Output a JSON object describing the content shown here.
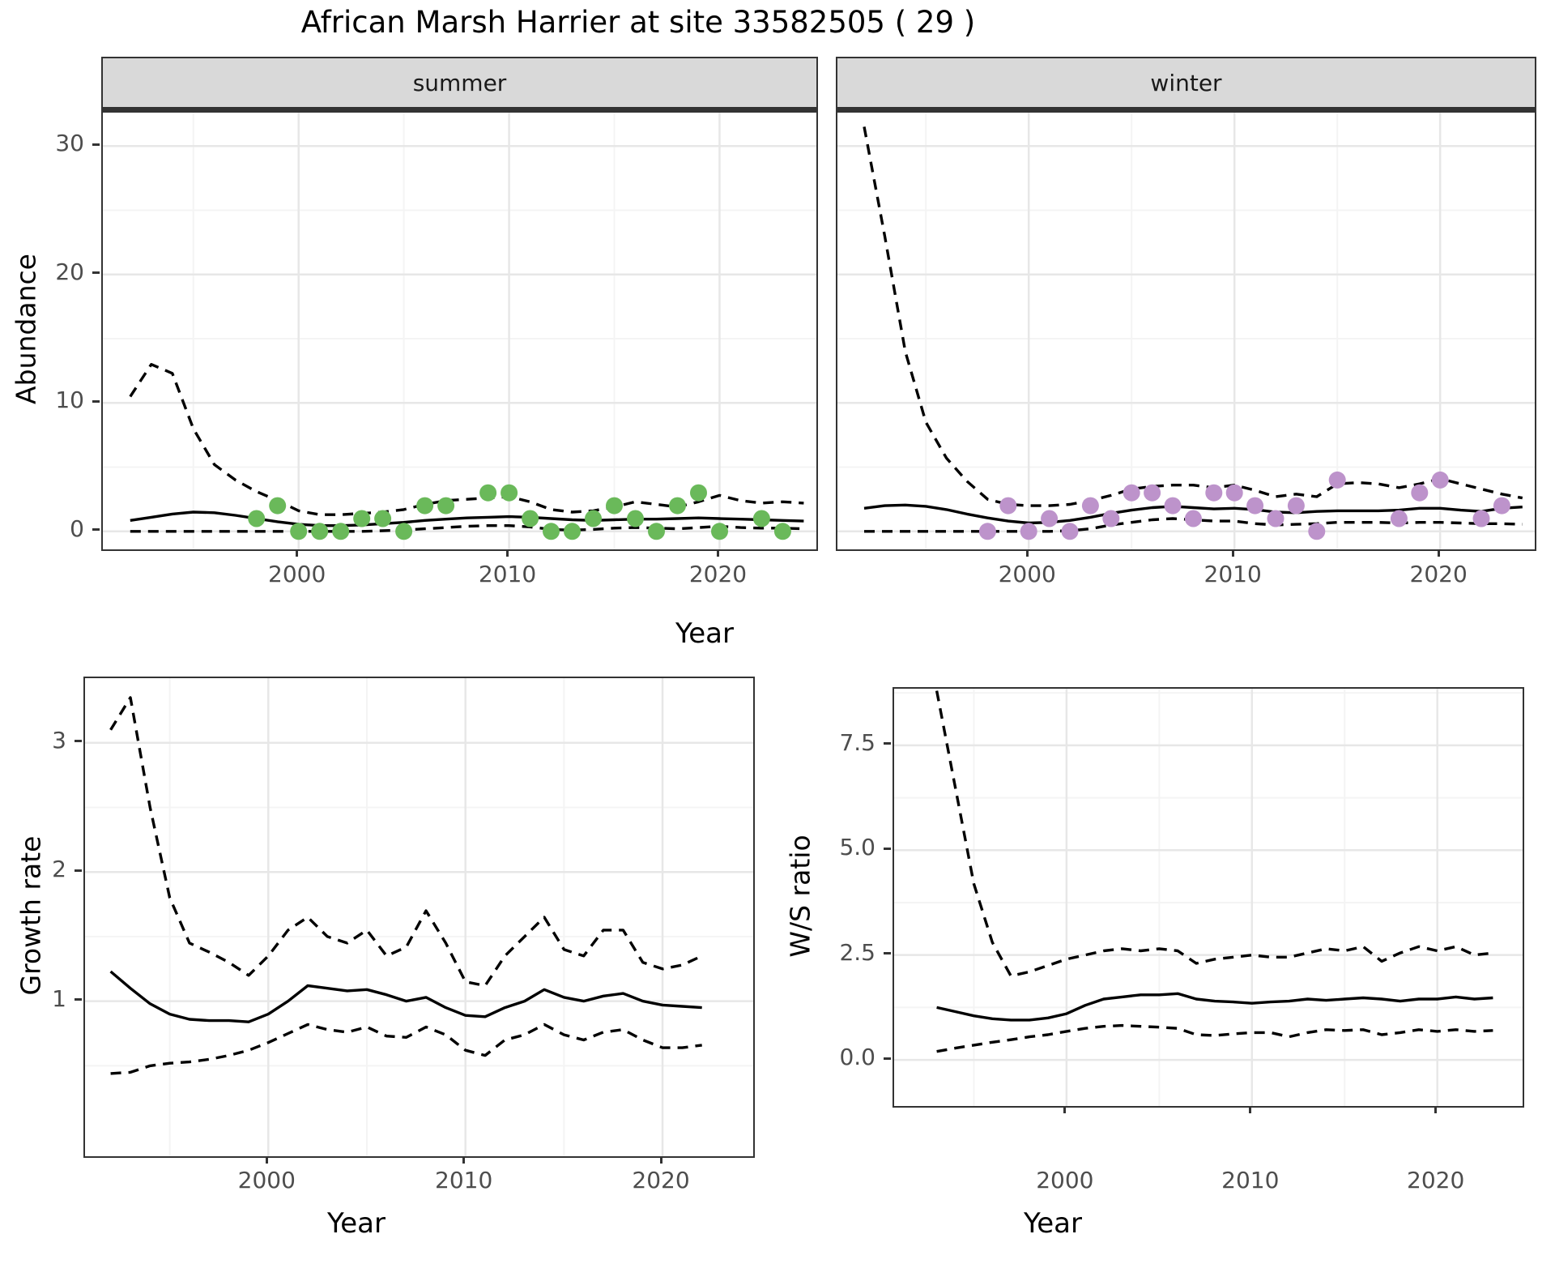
{
  "title": "African Marsh Harrier at site 33582505 ( 29 )",
  "colors": {
    "summer_points": "#6ab95a",
    "winter_points": "#bd93cb",
    "line": "#000000",
    "strip_bg": "#d9d9d9",
    "panel_border": "#333333",
    "grid_major": "#e7e7e7",
    "grid_minor": "#f4f4f4",
    "tick_text": "#4d4d4d",
    "tick_mark": "#333333"
  },
  "chart_data": [
    {
      "id": "abundance-summer",
      "type": "line",
      "facet_label": "summer",
      "ylabel": "Abundance",
      "xlabel": "Year",
      "xlim": [
        1990.7,
        2024.6
      ],
      "ylim": [
        -1.4,
        32.6
      ],
      "x_ticks": [
        2000,
        2010,
        2020
      ],
      "x_tick_labels": [
        "2000",
        "2010",
        "2020"
      ],
      "x_minor": [
        1995,
        2005,
        2015
      ],
      "y_ticks": [
        0,
        10,
        20,
        30
      ],
      "y_tick_labels": [
        "0",
        "10",
        "20",
        "30"
      ],
      "y_minor": [
        5,
        15,
        25
      ],
      "line_years": [
        1992,
        1993,
        1994,
        1995,
        1996,
        1997,
        1998,
        1999,
        2000,
        2001,
        2002,
        2003,
        2004,
        2005,
        2006,
        2007,
        2008,
        2009,
        2010,
        2011,
        2012,
        2013,
        2014,
        2015,
        2016,
        2017,
        2018,
        2019,
        2020,
        2021,
        2022,
        2023,
        2024
      ],
      "series": [
        {
          "name": "fitted",
          "style": "solid",
          "values": [
            0.85,
            1.1,
            1.35,
            1.5,
            1.45,
            1.25,
            1.0,
            0.75,
            0.55,
            0.45,
            0.45,
            0.5,
            0.6,
            0.7,
            0.85,
            0.95,
            1.05,
            1.1,
            1.15,
            1.1,
            1.0,
            0.9,
            0.85,
            0.9,
            0.95,
            0.95,
            1.0,
            1.05,
            1.0,
            0.95,
            0.9,
            0.85,
            0.8
          ]
        },
        {
          "name": "upper_ci",
          "style": "dashed",
          "values": [
            10.5,
            13.0,
            12.3,
            8.0,
            5.2,
            4.0,
            3.1,
            2.4,
            1.6,
            1.3,
            1.3,
            1.4,
            1.5,
            1.7,
            2.1,
            2.4,
            2.5,
            2.6,
            2.7,
            2.3,
            1.7,
            1.5,
            1.6,
            1.9,
            2.3,
            2.1,
            1.9,
            2.3,
            2.8,
            2.4,
            2.2,
            2.3,
            2.2
          ]
        },
        {
          "name": "lower_ci",
          "style": "dashed",
          "values": [
            0,
            0,
            0,
            0,
            0,
            0,
            0,
            0,
            0,
            0,
            0,
            0,
            0.05,
            0.1,
            0.2,
            0.3,
            0.4,
            0.45,
            0.45,
            0.35,
            0.15,
            0.1,
            0.15,
            0.25,
            0.3,
            0.25,
            0.2,
            0.3,
            0.4,
            0.3,
            0.25,
            0.25,
            0.2
          ]
        }
      ],
      "points": {
        "color_key": "summer_points",
        "years": [
          1998,
          1999,
          2000,
          2001,
          2002,
          2003,
          2004,
          2005,
          2006,
          2007,
          2009,
          2010,
          2011,
          2012,
          2013,
          2014,
          2015,
          2016,
          2017,
          2018,
          2019,
          2020,
          2022,
          2023
        ],
        "values": [
          1,
          2,
          0,
          0,
          0,
          1,
          1,
          0,
          2,
          2,
          3,
          3,
          1,
          0,
          0,
          1,
          2,
          1,
          0,
          2,
          3,
          0,
          1,
          0
        ]
      }
    },
    {
      "id": "abundance-winter",
      "type": "line",
      "facet_label": "winter",
      "ylabel": "Abundance",
      "xlabel": "Year",
      "xlim": [
        1990.7,
        2024.6
      ],
      "ylim": [
        -1.4,
        32.6
      ],
      "x_ticks": [
        2000,
        2010,
        2020
      ],
      "x_tick_labels": [
        "2000",
        "2010",
        "2020"
      ],
      "x_minor": [
        1995,
        2005,
        2015
      ],
      "y_ticks": [
        0,
        10,
        20,
        30
      ],
      "y_tick_labels": [
        "0",
        "10",
        "20",
        "30"
      ],
      "y_minor": [
        5,
        15,
        25
      ],
      "line_years": [
        1992,
        1993,
        1994,
        1995,
        1996,
        1997,
        1998,
        1999,
        2000,
        2001,
        2002,
        2003,
        2004,
        2005,
        2006,
        2007,
        2008,
        2009,
        2010,
        2011,
        2012,
        2013,
        2014,
        2015,
        2016,
        2017,
        2018,
        2019,
        2020,
        2021,
        2022,
        2023,
        2024
      ],
      "series": [
        {
          "name": "fitted",
          "style": "solid",
          "values": [
            1.8,
            2.0,
            2.05,
            1.95,
            1.7,
            1.35,
            1.05,
            0.8,
            0.65,
            0.7,
            0.85,
            1.1,
            1.4,
            1.65,
            1.85,
            1.95,
            1.85,
            1.75,
            1.8,
            1.7,
            1.5,
            1.45,
            1.55,
            1.6,
            1.6,
            1.6,
            1.65,
            1.8,
            1.8,
            1.65,
            1.55,
            1.8,
            1.9
          ]
        },
        {
          "name": "upper_ci",
          "style": "dashed",
          "values": [
            31.5,
            23.0,
            14.0,
            8.5,
            5.7,
            3.9,
            2.5,
            2.1,
            2.0,
            2.0,
            2.1,
            2.4,
            2.8,
            3.3,
            3.5,
            3.6,
            3.6,
            3.4,
            3.6,
            3.2,
            2.7,
            2.9,
            2.7,
            3.7,
            3.8,
            3.7,
            3.4,
            3.7,
            4.1,
            3.7,
            3.3,
            2.9,
            2.6
          ]
        },
        {
          "name": "lower_ci",
          "style": "dashed",
          "values": [
            0,
            0,
            0,
            0,
            0,
            0,
            0,
            0,
            0,
            0,
            0.05,
            0.2,
            0.5,
            0.7,
            0.9,
            1.0,
            0.9,
            0.8,
            0.8,
            0.6,
            0.5,
            0.55,
            0.6,
            0.7,
            0.7,
            0.7,
            0.65,
            0.7,
            0.7,
            0.65,
            0.6,
            0.6,
            0.55
          ]
        }
      ],
      "points": {
        "color_key": "winter_points",
        "years": [
          1998,
          1999,
          2000,
          2001,
          2002,
          2003,
          2004,
          2005,
          2006,
          2007,
          2008,
          2009,
          2010,
          2011,
          2012,
          2013,
          2014,
          2015,
          2018,
          2019,
          2020,
          2022,
          2023
        ],
        "values": [
          0,
          2,
          0,
          1,
          0,
          2,
          1,
          3,
          3,
          2,
          1,
          3,
          3,
          2,
          1,
          2,
          0,
          4,
          1,
          3,
          4,
          1,
          2
        ]
      }
    },
    {
      "id": "growth-rate",
      "type": "line",
      "facet_label": "",
      "ylabel": "Growth rate",
      "xlabel": "Year",
      "xlim": [
        1990.7,
        2024.6
      ],
      "ylim": [
        -0.2,
        3.5
      ],
      "x_ticks": [
        2000,
        2010,
        2020
      ],
      "x_tick_labels": [
        "2000",
        "2010",
        "2020"
      ],
      "x_minor": [
        1995,
        2005,
        2015
      ],
      "y_ticks": [
        1,
        2,
        3
      ],
      "y_tick_labels": [
        "1",
        "2",
        "3"
      ],
      "y_minor": [
        0.5,
        1.5,
        2.5
      ],
      "line_years": [
        1992,
        1993,
        1994,
        1995,
        1996,
        1997,
        1998,
        1999,
        2000,
        2001,
        2002,
        2003,
        2004,
        2005,
        2006,
        2007,
        2008,
        2009,
        2010,
        2011,
        2012,
        2013,
        2014,
        2015,
        2016,
        2017,
        2018,
        2019,
        2020,
        2021,
        2022
      ],
      "series": [
        {
          "name": "fitted",
          "style": "solid",
          "values": [
            1.23,
            1.1,
            0.98,
            0.9,
            0.86,
            0.85,
            0.85,
            0.84,
            0.9,
            1.0,
            1.12,
            1.1,
            1.08,
            1.09,
            1.05,
            1.0,
            1.03,
            0.95,
            0.89,
            0.88,
            0.95,
            1.0,
            1.09,
            1.03,
            1.0,
            1.04,
            1.06,
            1.0,
            0.97,
            0.96,
            0.95
          ]
        },
        {
          "name": "upper_ci",
          "style": "dashed",
          "values": [
            3.1,
            3.35,
            2.5,
            1.8,
            1.45,
            1.38,
            1.3,
            1.2,
            1.35,
            1.55,
            1.65,
            1.5,
            1.45,
            1.55,
            1.35,
            1.42,
            1.7,
            1.45,
            1.15,
            1.12,
            1.35,
            1.5,
            1.65,
            1.4,
            1.35,
            1.55,
            1.55,
            1.3,
            1.25,
            1.28,
            1.35
          ]
        },
        {
          "name": "lower_ci",
          "style": "dashed",
          "values": [
            0.44,
            0.45,
            0.5,
            0.52,
            0.53,
            0.55,
            0.58,
            0.62,
            0.68,
            0.75,
            0.82,
            0.78,
            0.76,
            0.8,
            0.73,
            0.72,
            0.8,
            0.74,
            0.62,
            0.58,
            0.7,
            0.74,
            0.82,
            0.74,
            0.7,
            0.76,
            0.78,
            0.7,
            0.64,
            0.64,
            0.66
          ]
        }
      ],
      "points": null
    },
    {
      "id": "ws-ratio",
      "type": "line",
      "facet_label": "",
      "ylabel": "W/S ratio",
      "xlabel": "Year",
      "xlim": [
        1990.7,
        2024.6
      ],
      "ylim": [
        -1.1,
        8.85
      ],
      "x_ticks": [
        2000,
        2010,
        2020
      ],
      "x_tick_labels": [
        "2000",
        "2010",
        "2020"
      ],
      "x_minor": [
        1995,
        2005,
        2015
      ],
      "y_ticks": [
        0,
        2.5,
        5,
        7.5
      ],
      "y_tick_labels": [
        "0.0",
        "2.5",
        "5.0",
        "7.5"
      ],
      "y_minor": [
        1.25,
        3.75,
        6.25,
        8.75
      ],
      "line_years": [
        1993,
        1994,
        1995,
        1996,
        1997,
        1998,
        1999,
        2000,
        2001,
        2002,
        2003,
        2004,
        2005,
        2006,
        2007,
        2008,
        2009,
        2010,
        2011,
        2012,
        2013,
        2014,
        2015,
        2016,
        2017,
        2018,
        2019,
        2020,
        2021,
        2022,
        2023
      ],
      "series": [
        {
          "name": "fitted",
          "style": "solid",
          "values": [
            1.25,
            1.15,
            1.05,
            0.98,
            0.95,
            0.95,
            1.0,
            1.1,
            1.3,
            1.45,
            1.5,
            1.55,
            1.55,
            1.58,
            1.45,
            1.4,
            1.38,
            1.35,
            1.38,
            1.4,
            1.45,
            1.42,
            1.45,
            1.48,
            1.45,
            1.4,
            1.45,
            1.45,
            1.5,
            1.45,
            1.48
          ]
        },
        {
          "name": "upper_ci",
          "style": "dashed",
          "values": [
            8.8,
            6.5,
            4.2,
            2.8,
            2.0,
            2.1,
            2.25,
            2.4,
            2.5,
            2.6,
            2.65,
            2.6,
            2.65,
            2.6,
            2.3,
            2.4,
            2.45,
            2.5,
            2.45,
            2.45,
            2.55,
            2.65,
            2.6,
            2.7,
            2.35,
            2.55,
            2.7,
            2.6,
            2.7,
            2.5,
            2.55
          ]
        },
        {
          "name": "lower_ci",
          "style": "dashed",
          "values": [
            0.2,
            0.28,
            0.35,
            0.42,
            0.48,
            0.55,
            0.6,
            0.68,
            0.75,
            0.8,
            0.82,
            0.8,
            0.78,
            0.75,
            0.6,
            0.58,
            0.62,
            0.65,
            0.65,
            0.55,
            0.65,
            0.72,
            0.7,
            0.72,
            0.6,
            0.65,
            0.72,
            0.68,
            0.72,
            0.68,
            0.7
          ]
        }
      ],
      "points": null
    }
  ]
}
